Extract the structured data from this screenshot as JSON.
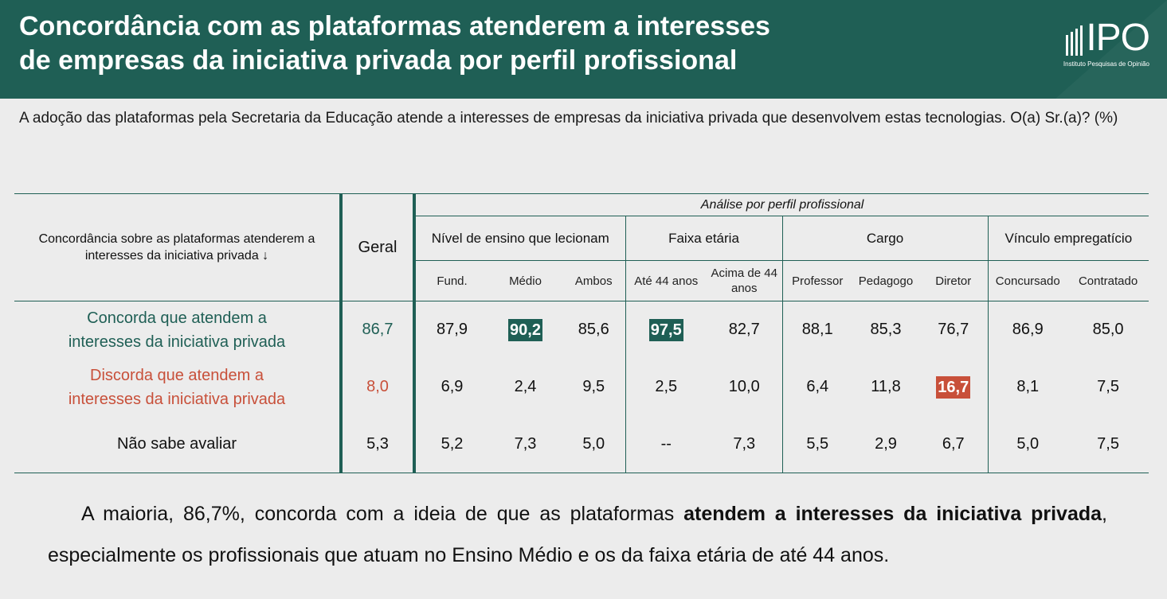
{
  "header": {
    "title_line1": "Concordância com as plataformas atenderem a interesses",
    "title_line2": "de empresas da iniciativa privada por perfil profissional",
    "logo_text": "IPO",
    "logo_subtitle": "Instituto Pesquisas de Opinião",
    "bg_color": "#1f5f55"
  },
  "question": "A adoção das plataformas pela Secretaria da Educação atende a interesses de empresas da iniciativa privada que desenvolvem estas tecnologias. O(a) Sr.(a)? (%)",
  "table": {
    "corner_label": "Concordância sobre as plataformas atenderem a interesses da iniciativa privada ↓",
    "geral_label": "Geral",
    "analise_label": "Análise por perfil profissional",
    "groups": [
      {
        "label": "Nível de ensino que lecionam",
        "subs": [
          "Fund.",
          "Médio",
          "Ambos"
        ]
      },
      {
        "label": "Faixa etária",
        "subs": [
          "Até 44 anos",
          "Acima de 44 anos"
        ]
      },
      {
        "label": "Cargo",
        "subs": [
          "Professor",
          "Pedagogo",
          "Diretor"
        ]
      },
      {
        "label": "Vínculo empregatício",
        "subs": [
          "Concursado",
          "Contratado"
        ]
      }
    ],
    "rows": [
      {
        "label_line1": "Concorda que atendem a",
        "label_line2": "interesses da iniciativa privada",
        "geral": "86,7",
        "values": [
          "87,9",
          "90,2",
          "85,6",
          "97,5",
          "82,7",
          "88,1",
          "85,3",
          "76,7",
          "86,9",
          "85,0"
        ]
      },
      {
        "label_line1": "Discorda que atendem a",
        "label_line2": "interesses da iniciativa privada",
        "geral": "8,0",
        "values": [
          "6,9",
          "2,4",
          "9,5",
          "2,5",
          "10,0",
          "6,4",
          "11,8",
          "16,7",
          "8,1",
          "7,5"
        ]
      },
      {
        "label_line1": "Não sabe avaliar",
        "label_line2": "",
        "geral": "5,3",
        "values": [
          "5,2",
          "7,3",
          "5,0",
          "--",
          "7,3",
          "5,5",
          "2,9",
          "6,7",
          "5,0",
          "7,5"
        ]
      }
    ],
    "colors": {
      "concorda": "#1f5f55",
      "discorda": "#c8503a",
      "highlight_green": "#1f5f55",
      "highlight_red": "#c8503a"
    }
  },
  "summary": {
    "part1": "A maioria, 86,7%, concorda com a ideia de que as plataformas ",
    "bold": "atendem a interesses da iniciativa privada",
    "part2": ", especialmente os profissionais que atuam no Ensino Médio e os da faixa etária de até 44 anos."
  }
}
